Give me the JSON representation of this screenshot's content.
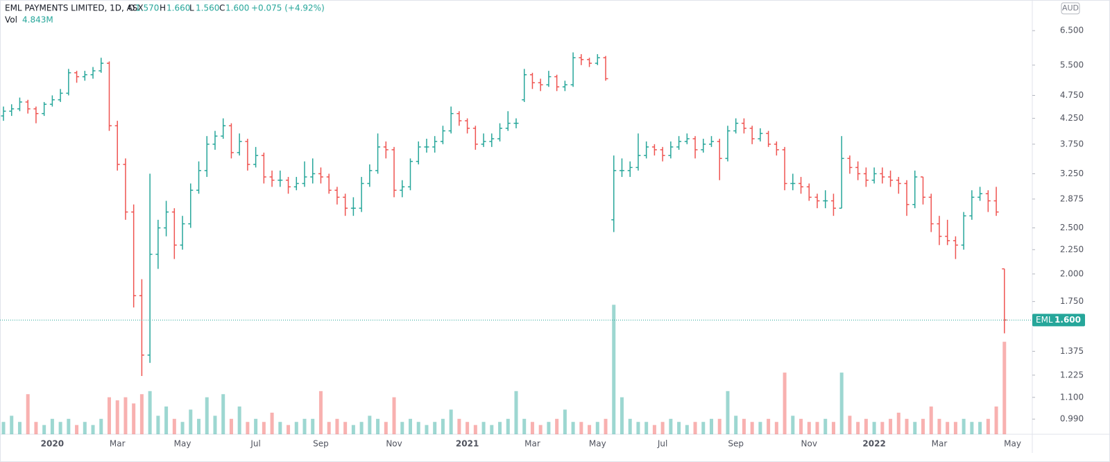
{
  "header": {
    "symbol": "EML PAYMENTS LIMITED, 1D, ASX",
    "o_label": "O",
    "o": "1.570",
    "h_label": "H",
    "h": "1.660",
    "l_label": "L",
    "l": "1.560",
    "c_label": "C",
    "c": "1.600",
    "change": "+0.075 (+4.92%)",
    "vol_label": "Vol",
    "vol": "4.843M",
    "currency": "AUD"
  },
  "chart_data": {
    "type": "ohlc",
    "log_scale": true,
    "up_color": "#26a69a",
    "down_color": "#ef5350",
    "ylim": [
      0.92,
      7.54
    ],
    "yticks": [
      {
        "value": 0.99,
        "label": "0.990"
      },
      {
        "value": 1.1,
        "label": "1.100"
      },
      {
        "value": 1.225,
        "label": "1.225"
      },
      {
        "value": 1.375,
        "label": "1.375"
      },
      {
        "value": 1.75,
        "label": "1.750"
      },
      {
        "value": 2,
        "label": "2.000"
      },
      {
        "value": 2.25,
        "label": "2.250"
      },
      {
        "value": 2.5,
        "label": "2.500"
      },
      {
        "value": 2.875,
        "label": "2.875"
      },
      {
        "value": 3.25,
        "label": "3.250"
      },
      {
        "value": 3.75,
        "label": "3.750"
      },
      {
        "value": 4.25,
        "label": "4.250"
      },
      {
        "value": 4.75,
        "label": "4.750"
      },
      {
        "value": 5.5,
        "label": "5.500"
      },
      {
        "value": 6.5,
        "label": "6.500"
      }
    ],
    "last": {
      "symbol": "EML",
      "value": 1.6,
      "label": "1.600"
    },
    "volume_lim": [
      0,
      45
    ],
    "categories": [
      null,
      null,
      null,
      null,
      null,
      null,
      "2020",
      null,
      null,
      null,
      null,
      null,
      null,
      null,
      "Mar",
      null,
      null,
      null,
      null,
      null,
      null,
      null,
      "May",
      null,
      null,
      null,
      null,
      null,
      null,
      null,
      null,
      "Jul",
      null,
      null,
      null,
      null,
      null,
      null,
      null,
      "Sep",
      null,
      null,
      null,
      null,
      null,
      null,
      null,
      null,
      "Nov",
      null,
      null,
      null,
      null,
      null,
      null,
      null,
      null,
      "2021",
      null,
      null,
      null,
      null,
      null,
      null,
      null,
      "Mar",
      null,
      null,
      null,
      null,
      null,
      null,
      null,
      "May",
      null,
      null,
      null,
      null,
      null,
      null,
      null,
      "Jul",
      null,
      null,
      null,
      null,
      null,
      null,
      null,
      null,
      "Sep",
      null,
      null,
      null,
      null,
      null,
      null,
      null,
      null,
      "Nov",
      null,
      null,
      null,
      null,
      null,
      null,
      null,
      "2022",
      null,
      null,
      null,
      null,
      null,
      null,
      null,
      "Mar",
      null,
      null,
      null,
      null,
      null,
      null,
      null,
      null,
      "May"
    ],
    "open": [
      4.3,
      4.4,
      4.45,
      4.6,
      4.45,
      4.35,
      4.55,
      4.65,
      4.8,
      5.3,
      5.2,
      5.25,
      5.35,
      5.55,
      4.1,
      3.4,
      2.7,
      1.8,
      1.35,
      2.2,
      2.5,
      2.7,
      2.3,
      2.55,
      3.0,
      3.3,
      3.75,
      3.9,
      4.1,
      3.6,
      3.8,
      3.4,
      3.55,
      3.2,
      3.15,
      3.15,
      3.05,
      3.1,
      3.2,
      3.25,
      3.2,
      3.0,
      2.9,
      2.75,
      2.75,
      3.1,
      3.3,
      3.7,
      3.65,
      3.0,
      3.05,
      3.45,
      3.7,
      3.7,
      3.8,
      4.0,
      4.35,
      4.2,
      4.05,
      3.75,
      3.8,
      3.85,
      4.05,
      4.15,
      4.65,
      5.25,
      5.05,
      5.0,
      5.2,
      4.95,
      5.0,
      5.7,
      5.65,
      5.55,
      5.7,
      2.6,
      3.3,
      3.3,
      3.35,
      3.55,
      3.7,
      3.65,
      3.55,
      3.7,
      3.8,
      3.85,
      3.65,
      3.75,
      3.8,
      3.5,
      4.0,
      4.15,
      4.05,
      3.85,
      3.95,
      3.75,
      3.65,
      3.1,
      3.1,
      3.05,
      2.9,
      2.85,
      2.85,
      2.75,
      3.5,
      3.35,
      3.25,
      3.15,
      3.25,
      3.2,
      3.15,
      3.1,
      2.8,
      3.2,
      2.9,
      2.55,
      2.4,
      2.35,
      2.3,
      2.65,
      2.9,
      2.95,
      2.85,
      2.05,
      null
    ],
    "high": [
      4.5,
      4.55,
      4.7,
      4.65,
      4.5,
      4.6,
      4.75,
      4.9,
      5.4,
      5.35,
      5.35,
      5.45,
      5.7,
      5.6,
      4.2,
      3.5,
      2.8,
      1.95,
      3.25,
      2.6,
      2.85,
      2.75,
      2.65,
      3.1,
      3.45,
      3.9,
      4.0,
      4.25,
      4.15,
      3.95,
      3.85,
      3.7,
      3.6,
      3.3,
      3.3,
      3.2,
      3.2,
      3.45,
      3.5,
      3.35,
      3.25,
      3.05,
      2.95,
      2.9,
      3.2,
      3.4,
      3.95,
      3.8,
      3.7,
      3.15,
      3.5,
      3.8,
      3.85,
      3.9,
      4.1,
      4.5,
      4.4,
      4.25,
      4.1,
      3.95,
      3.95,
      4.15,
      4.4,
      4.25,
      5.4,
      5.3,
      5.15,
      5.35,
      5.25,
      5.1,
      5.85,
      5.8,
      5.7,
      5.8,
      5.75,
      3.55,
      3.5,
      3.45,
      3.95,
      3.8,
      3.75,
      3.7,
      3.8,
      3.9,
      3.95,
      3.9,
      3.85,
      3.9,
      3.85,
      4.1,
      4.25,
      4.25,
      4.1,
      4.05,
      4.0,
      3.8,
      3.7,
      3.25,
      3.2,
      3.1,
      2.95,
      3.0,
      2.95,
      3.9,
      3.55,
      3.45,
      3.35,
      3.35,
      3.35,
      3.3,
      3.2,
      3.15,
      3.3,
      3.2,
      2.95,
      2.65,
      2.6,
      2.4,
      2.7,
      3.0,
      3.05,
      3.0,
      3.05,
      2.05,
      null
    ],
    "low": [
      4.2,
      4.3,
      4.4,
      4.35,
      4.15,
      4.3,
      4.5,
      4.6,
      4.75,
      5.05,
      5.1,
      5.15,
      5.3,
      4.0,
      3.3,
      2.6,
      1.7,
      1.22,
      1.3,
      2.05,
      2.4,
      2.15,
      2.25,
      2.5,
      2.95,
      3.2,
      3.65,
      3.85,
      3.5,
      3.55,
      3.3,
      3.35,
      3.1,
      3.05,
      3.05,
      2.95,
      3.0,
      3.05,
      3.1,
      3.1,
      2.95,
      2.8,
      2.65,
      2.65,
      2.7,
      3.05,
      3.25,
      3.5,
      2.9,
      2.9,
      3.0,
      3.4,
      3.6,
      3.6,
      3.75,
      3.95,
      4.1,
      3.95,
      3.65,
      3.7,
      3.7,
      3.8,
      4.0,
      4.05,
      4.6,
      4.9,
      4.85,
      4.95,
      4.85,
      4.85,
      4.95,
      5.5,
      5.45,
      5.5,
      5.1,
      2.45,
      3.2,
      3.2,
      3.3,
      3.5,
      3.55,
      3.45,
      3.5,
      3.65,
      3.75,
      3.5,
      3.6,
      3.7,
      3.15,
      3.45,
      3.95,
      3.95,
      3.75,
      3.8,
      3.7,
      3.55,
      3.0,
      3.0,
      2.95,
      2.85,
      2.75,
      2.75,
      2.65,
      2.75,
      3.25,
      3.15,
      3.05,
      3.1,
      3.1,
      3.05,
      2.95,
      2.65,
      2.75,
      2.8,
      2.45,
      2.3,
      2.3,
      2.15,
      2.25,
      2.6,
      2.85,
      2.7,
      2.65,
      1.5,
      null
    ],
    "close": [
      4.4,
      4.45,
      4.6,
      4.45,
      4.35,
      4.55,
      4.65,
      4.8,
      5.3,
      5.2,
      5.25,
      5.35,
      5.55,
      4.1,
      3.4,
      2.7,
      1.8,
      1.35,
      2.2,
      2.5,
      2.7,
      2.3,
      2.55,
      3.0,
      3.3,
      3.75,
      3.9,
      4.1,
      3.6,
      3.8,
      3.4,
      3.55,
      3.2,
      3.15,
      3.15,
      3.05,
      3.1,
      3.2,
      3.25,
      3.2,
      3.0,
      2.9,
      2.75,
      2.75,
      3.1,
      3.3,
      3.7,
      3.65,
      3.0,
      3.05,
      3.45,
      3.7,
      3.7,
      3.8,
      4.0,
      4.35,
      4.2,
      4.05,
      3.75,
      3.8,
      3.85,
      4.05,
      4.15,
      4.15,
      5.25,
      5.05,
      5.0,
      5.2,
      4.95,
      5.0,
      5.7,
      5.65,
      5.55,
      5.7,
      5.15,
      3.3,
      3.3,
      3.35,
      3.55,
      3.7,
      3.65,
      3.55,
      3.7,
      3.8,
      3.85,
      3.65,
      3.75,
      3.8,
      3.5,
      4.0,
      4.15,
      4.05,
      3.85,
      3.95,
      3.75,
      3.65,
      3.1,
      3.1,
      3.05,
      2.9,
      2.85,
      2.85,
      2.75,
      3.5,
      3.35,
      3.25,
      3.15,
      3.25,
      3.2,
      3.15,
      3.1,
      2.8,
      3.2,
      2.9,
      2.55,
      2.4,
      2.35,
      2.3,
      2.65,
      2.9,
      2.95,
      2.85,
      2.7,
      1.6,
      null
    ],
    "volume": [
      4,
      6,
      4,
      13,
      4,
      3,
      5,
      4,
      5,
      3,
      4,
      3,
      5,
      12,
      11,
      12,
      10,
      13,
      14,
      6,
      9,
      5,
      4,
      8,
      5,
      12,
      6,
      13,
      5,
      9,
      4,
      5,
      4,
      7,
      4,
      3,
      4,
      5,
      5,
      14,
      4,
      5,
      4,
      3,
      4,
      6,
      5,
      4,
      12,
      4,
      5,
      4,
      3,
      4,
      5,
      8,
      5,
      4,
      3,
      4,
      3,
      4,
      5,
      14,
      5,
      4,
      3,
      4,
      5,
      8,
      4,
      4,
      3,
      4,
      5,
      42,
      12,
      5,
      4,
      4,
      3,
      4,
      5,
      4,
      3,
      4,
      4,
      5,
      5,
      14,
      6,
      5,
      4,
      4,
      5,
      4,
      20,
      6,
      5,
      4,
      4,
      5,
      4,
      20,
      6,
      4,
      5,
      4,
      4,
      5,
      7,
      5,
      4,
      5,
      9,
      5,
      4,
      4,
      5,
      4,
      4,
      5,
      9,
      30,
      null
    ]
  }
}
